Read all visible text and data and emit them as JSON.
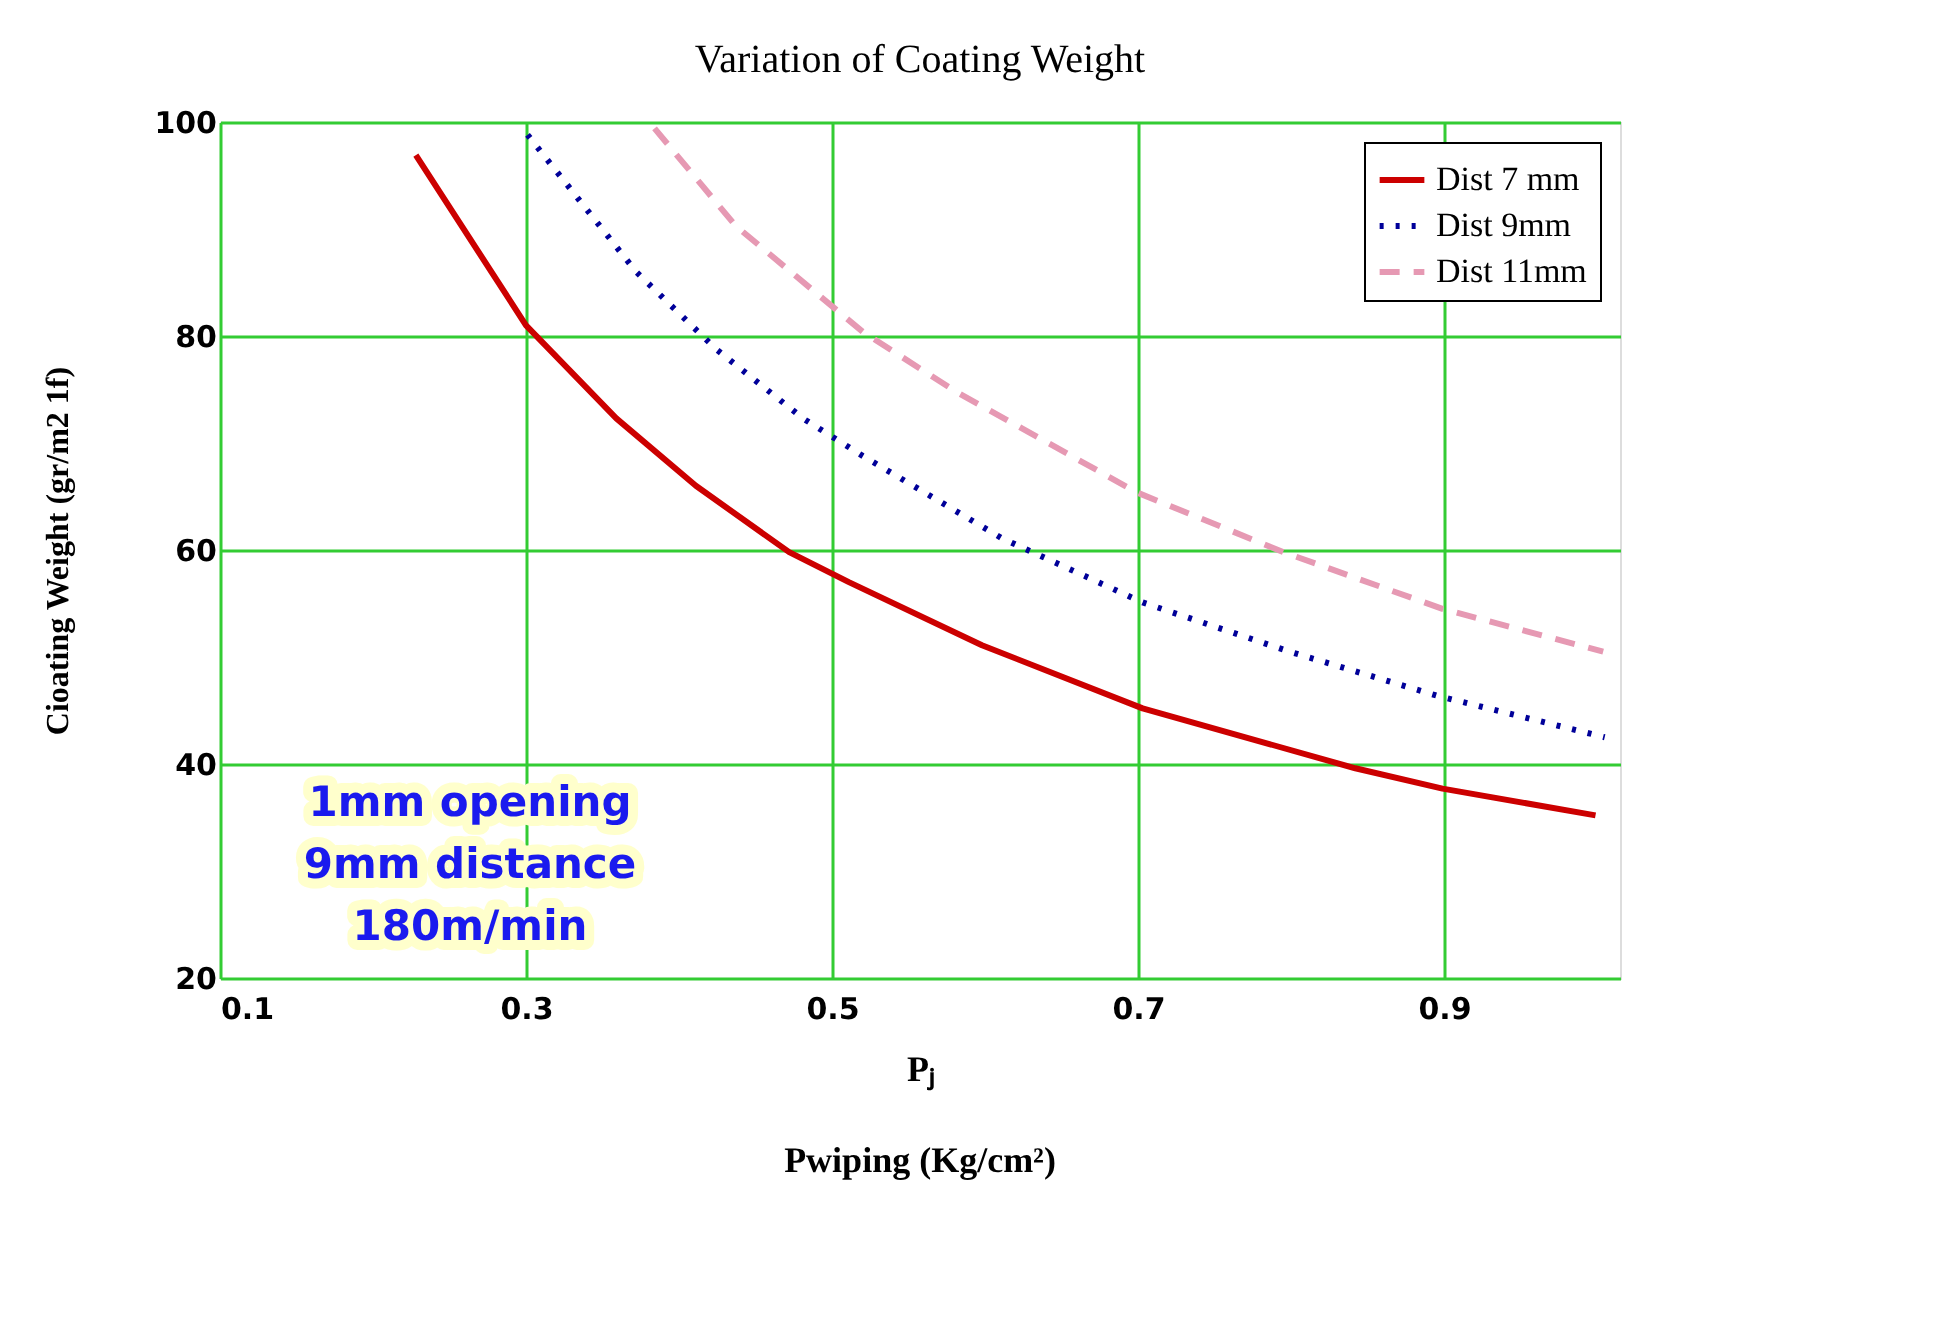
{
  "chart_data": {
    "type": "line",
    "title": "Variation of Coating Weight",
    "xlabel": "Pⱼ",
    "ylabel": "Cioating Weight (gr/m2 1f)",
    "annotations": [
      "1mm opening\n9mm distance\n180m/min",
      "Pwiping (Kg/cm²)"
    ],
    "xlim": [
      0.1,
      1.015
    ],
    "xticks": [
      0.1,
      0.3,
      0.5,
      0.7,
      0.9
    ],
    "ylim": [
      20,
      100
    ],
    "yticks": [
      20,
      40,
      60,
      80,
      100
    ],
    "grid": true,
    "legend": "top right",
    "marker": "none",
    "series": [
      {
        "name": "Dist 7 mm",
        "color": "#cc0000",
        "line_style": "solid",
        "x": [
          0.228,
          0.3,
          0.359,
          0.411,
          0.472,
          0.511,
          0.598,
          0.703,
          0.842,
          0.899,
          0.999
        ],
        "values": [
          96.9,
          81.0,
          72.3,
          66.0,
          59.8,
          57.0,
          51.1,
          45.2,
          39.6,
          37.7,
          35.2
        ]
      },
      {
        "name": "Dist 9mm",
        "color": "#000099",
        "line_style": "dotted",
        "x": [
          0.301,
          0.372,
          0.424,
          0.481,
          0.52,
          0.611,
          0.703,
          0.799,
          0.895,
          1.005
        ],
        "values": [
          98.8,
          86.0,
          78.8,
          72.3,
          68.8,
          61.1,
          55.1,
          50.5,
          46.4,
          42.5
        ]
      },
      {
        "name": "Dist 11mm",
        "color": "#e699b3",
        "line_style": "dashed",
        "x": [
          0.384,
          0.437,
          0.52,
          0.581,
          0.699,
          0.795,
          0.899,
          1.004
        ],
        "values": [
          99.4,
          90.3,
          80.4,
          74.8,
          65.4,
          59.8,
          54.5,
          50.5
        ]
      }
    ]
  }
}
